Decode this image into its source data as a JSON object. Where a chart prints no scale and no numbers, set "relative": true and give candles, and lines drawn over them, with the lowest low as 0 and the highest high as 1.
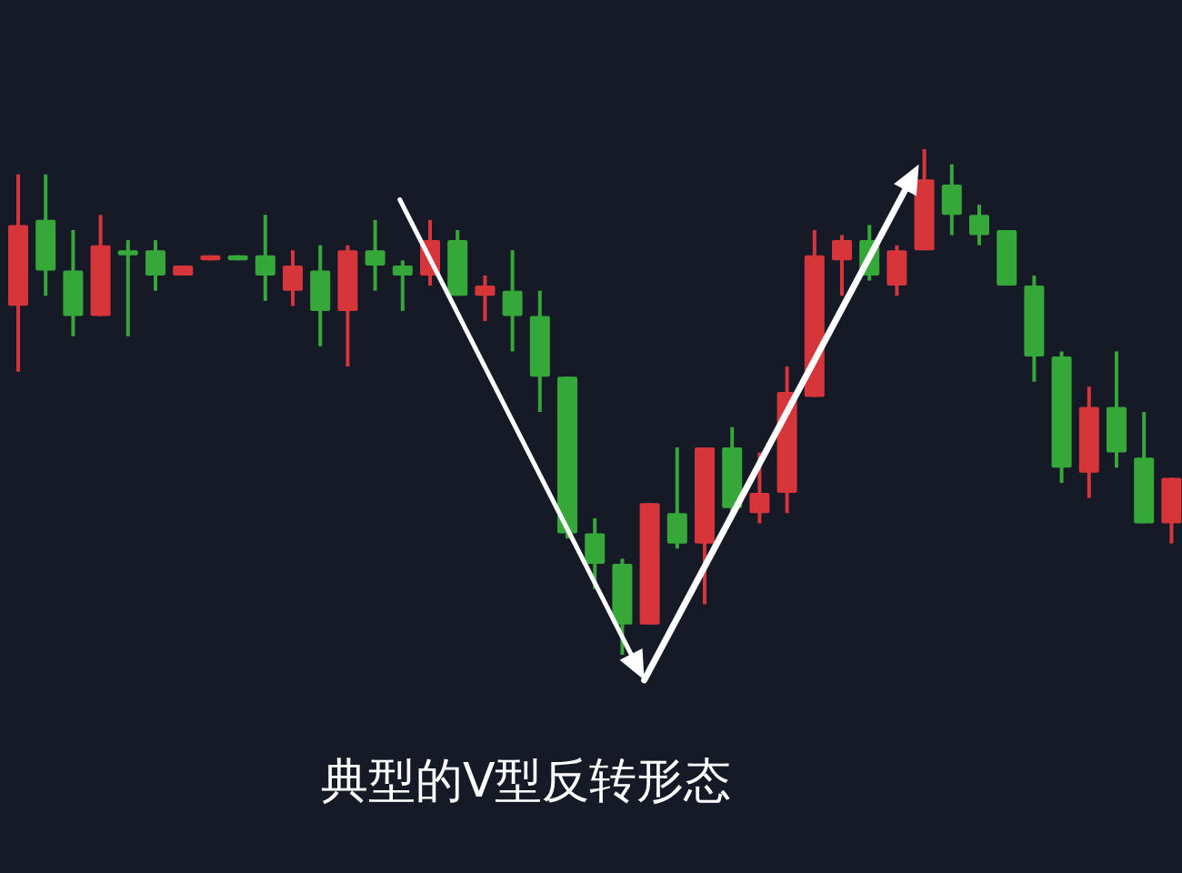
{
  "chart_data": {
    "type": "candlestick",
    "relative": true,
    "title": "典型的V型反转形态",
    "categories": [
      null,
      null,
      null,
      null,
      null,
      null,
      null,
      null,
      null,
      null,
      null,
      null,
      null,
      null,
      null,
      null,
      null,
      null,
      null,
      null,
      null,
      null,
      null,
      null,
      null,
      null,
      null,
      null,
      null,
      null,
      null,
      null,
      null,
      null,
      null,
      null,
      null,
      null,
      null,
      null,
      null,
      null,
      null
    ],
    "ohlc": [
      [
        0.69,
        0.95,
        0.56,
        0.85
      ],
      [
        0.86,
        0.95,
        0.71,
        0.76
      ],
      [
        0.76,
        0.84,
        0.63,
        0.67
      ],
      [
        0.67,
        0.87,
        0.67,
        0.81
      ],
      [
        0.8,
        0.82,
        0.63,
        0.79
      ],
      [
        0.8,
        0.82,
        0.72,
        0.75
      ],
      [
        0.75,
        0.77,
        0.75,
        0.77
      ],
      [
        0.78,
        0.79,
        0.78,
        0.79
      ],
      [
        0.79,
        0.79,
        0.78,
        0.78
      ],
      [
        0.79,
        0.87,
        0.7,
        0.75
      ],
      [
        0.72,
        0.8,
        0.69,
        0.77
      ],
      [
        0.76,
        0.81,
        0.61,
        0.68
      ],
      [
        0.68,
        0.81,
        0.57,
        0.8
      ],
      [
        0.8,
        0.86,
        0.72,
        0.77
      ],
      [
        0.77,
        0.78,
        0.68,
        0.75
      ],
      [
        0.75,
        0.86,
        0.73,
        0.82
      ],
      [
        0.82,
        0.84,
        0.71,
        0.71
      ],
      [
        0.71,
        0.75,
        0.66,
        0.73
      ],
      [
        0.72,
        0.8,
        0.6,
        0.67
      ],
      [
        0.67,
        0.72,
        0.48,
        0.55
      ],
      [
        0.55,
        0.55,
        0.23,
        0.24
      ],
      [
        0.24,
        0.27,
        0.13,
        0.18
      ],
      [
        0.18,
        0.19,
        0.0,
        0.06
      ],
      [
        0.06,
        0.3,
        0.06,
        0.3
      ],
      [
        0.28,
        0.41,
        0.21,
        0.22
      ],
      [
        0.22,
        0.41,
        0.1,
        0.41
      ],
      [
        0.41,
        0.45,
        0.28,
        0.29
      ],
      [
        0.28,
        0.4,
        0.26,
        0.32
      ],
      [
        0.32,
        0.57,
        0.28,
        0.52
      ],
      [
        0.51,
        0.84,
        0.51,
        0.79
      ],
      [
        0.78,
        0.83,
        0.71,
        0.82
      ],
      [
        0.82,
        0.85,
        0.74,
        0.75
      ],
      [
        0.73,
        0.81,
        0.71,
        0.8
      ],
      [
        0.8,
        1.0,
        0.8,
        0.94
      ],
      [
        0.93,
        0.97,
        0.83,
        0.87
      ],
      [
        0.87,
        0.89,
        0.81,
        0.83
      ],
      [
        0.84,
        0.84,
        0.73,
        0.73
      ],
      [
        0.73,
        0.75,
        0.54,
        0.59
      ],
      [
        0.59,
        0.6,
        0.34,
        0.37
      ],
      [
        0.36,
        0.53,
        0.31,
        0.49
      ],
      [
        0.49,
        0.6,
        0.37,
        0.4
      ],
      [
        0.39,
        0.48,
        0.26,
        0.26
      ],
      [
        0.26,
        0.35,
        0.22,
        0.35
      ]
    ],
    "colors": [
      "#d6363a",
      "#36a83a",
      "#36a83a",
      "#d6363a",
      "#36a83a",
      "#36a83a",
      "#d6363a",
      "#d6363a",
      "#36a83a",
      "#36a83a",
      "#d6363a",
      "#36a83a",
      "#d6363a",
      "#36a83a",
      "#36a83a",
      "#d6363a",
      "#36a83a",
      "#d6363a",
      "#36a83a",
      "#36a83a",
      "#36a83a",
      "#36a83a",
      "#36a83a",
      "#d6363a",
      "#36a83a",
      "#d6363a",
      "#36a83a",
      "#d6363a",
      "#d6363a",
      "#d6363a",
      "#d6363a",
      "#36a83a",
      "#d6363a",
      "#d6363a",
      "#36a83a",
      "#36a83a",
      "#36a83a",
      "#36a83a",
      "#36a83a",
      "#d6363a",
      "#36a83a",
      "#36a83a",
      "#d6363a"
    ]
  }
}
